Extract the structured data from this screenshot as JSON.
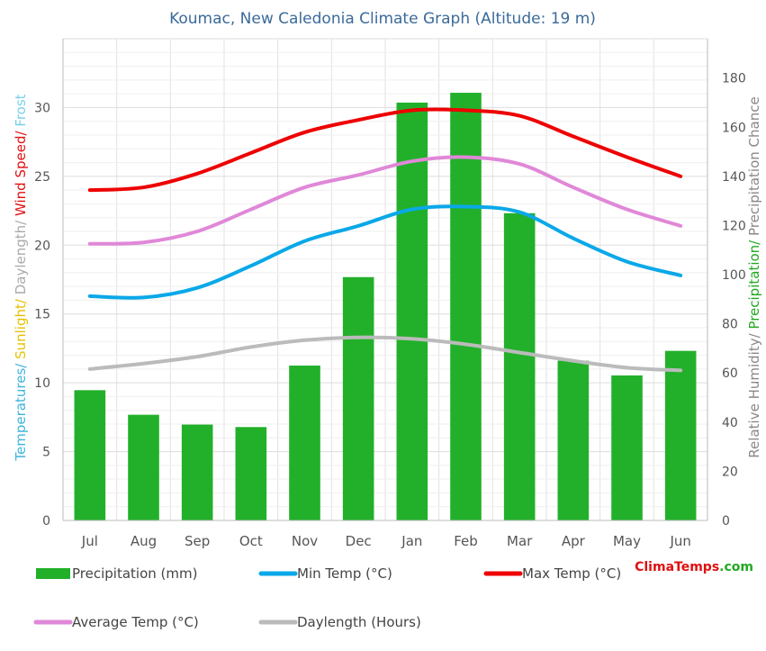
{
  "chart_data": {
    "type": "bar+line",
    "title": "Koumac, New Caledonia Climate Graph (Altitude: 19 m)",
    "categories": [
      "Jul",
      "Aug",
      "Sep",
      "Oct",
      "Nov",
      "Dec",
      "Jan",
      "Feb",
      "Mar",
      "Apr",
      "May",
      "Jun"
    ],
    "left_axis": {
      "label_parts": [
        {
          "text": "Temperatures",
          "color": "#3fb4dc"
        },
        {
          "text": "/ ",
          "color": "#3fb4dc"
        },
        {
          "text": "Sunlight",
          "color": "#e6c000"
        },
        {
          "text": "/ ",
          "color": "#e6c000"
        },
        {
          "text": "Daylength",
          "color": "#aaaaaa"
        },
        {
          "text": "/ ",
          "color": "#aaaaaa"
        },
        {
          "text": "Wind Speed",
          "color": "#e01010"
        },
        {
          "text": "/ ",
          "color": "#e01010"
        },
        {
          "text": "Frost",
          "color": "#7ad0e8"
        }
      ],
      "ylim": [
        0,
        35
      ],
      "ticks": [
        "0",
        "5",
        "10",
        "15",
        "20",
        "25",
        "30"
      ]
    },
    "right_axis": {
      "label_parts": [
        {
          "text": "Relative Humidity",
          "color": "#888888"
        },
        {
          "text": "/ ",
          "color": "#888888"
        },
        {
          "text": "Precipitation",
          "color": "#22a822"
        },
        {
          "text": "/ ",
          "color": "#22a822"
        },
        {
          "text": "Precipitation Chance",
          "color": "#888888"
        }
      ],
      "ylim": [
        0,
        196
      ],
      "ticks": [
        "0",
        "20",
        "40",
        "60",
        "80",
        "100",
        "120",
        "140",
        "160",
        "180"
      ]
    },
    "series": [
      {
        "name": "Precipitation (mm)",
        "kind": "bar",
        "axis": "right",
        "color": "#22b02a",
        "values": [
          53,
          43,
          39,
          38,
          63,
          99,
          170,
          174,
          125,
          65,
          59,
          69
        ]
      },
      {
        "name": "Min Temp (°C)",
        "kind": "line",
        "axis": "left",
        "color": "#0aa8e8",
        "values": [
          16.3,
          16.2,
          16.9,
          18.5,
          20.3,
          21.4,
          22.6,
          22.8,
          22.4,
          20.5,
          18.8,
          17.8
        ]
      },
      {
        "name": "Max Temp (°C)",
        "kind": "line",
        "axis": "left",
        "color": "#ee0000",
        "values": [
          24.0,
          24.2,
          25.2,
          26.7,
          28.2,
          29.1,
          29.8,
          29.8,
          29.4,
          27.9,
          26.4,
          25.0
        ]
      },
      {
        "name": "Average Temp (°C)",
        "kind": "line",
        "axis": "left",
        "color": "#e088d8",
        "values": [
          20.1,
          20.2,
          21.0,
          22.6,
          24.2,
          25.1,
          26.1,
          26.4,
          25.9,
          24.2,
          22.6,
          21.4
        ]
      },
      {
        "name": "Daylength (Hours)",
        "kind": "line",
        "axis": "left",
        "color": "#bbbbbb",
        "values": [
          11.0,
          11.4,
          11.9,
          12.6,
          13.1,
          13.3,
          13.2,
          12.8,
          12.2,
          11.6,
          11.1,
          10.9
        ]
      }
    ],
    "legend_placement": "bottom",
    "grid": true,
    "watermark": {
      "part1": "Clima",
      "part2": "Temps",
      "part3": ".com",
      "color1": "#e01010",
      "color2": "#22a822"
    }
  }
}
